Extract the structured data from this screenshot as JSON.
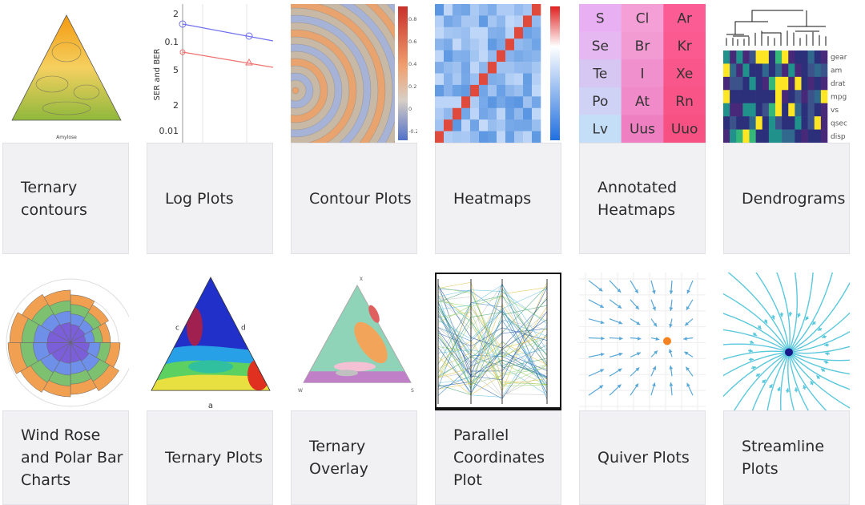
{
  "cards": [
    {
      "label": "Ternary contours",
      "thumb_text": [
        "Amylose"
      ]
    },
    {
      "label": "Log Plots",
      "thumb_text": [
        "SER and BER",
        "2",
        "0.1",
        "5",
        "2",
        "0.01"
      ]
    },
    {
      "label": "Contour Plots",
      "thumb_text": [
        "0.8",
        "0.6",
        "0.4",
        "0.2",
        "0",
        "-0.2"
      ]
    },
    {
      "label": "Heatmaps",
      "thumb_text": []
    },
    {
      "label": "Annotated Heatmaps",
      "thumb_text": [
        "S",
        "Se",
        "Te",
        "Po",
        "Lv",
        "Cl",
        "Br",
        "I",
        "At",
        "Uus",
        "Ar",
        "Kr",
        "Xe",
        "Rn",
        "Uuo"
      ]
    },
    {
      "label": "Dendrograms",
      "thumb_text": [
        "gear",
        "am",
        "drat",
        "mpg",
        "vs",
        "qsec",
        "disp"
      ]
    },
    {
      "label": "Wind Rose and Polar Bar Charts",
      "thumb_text": []
    },
    {
      "label": "Ternary Plots",
      "thumb_text": [
        "a",
        "c",
        "d"
      ]
    },
    {
      "label": "Ternary Overlay",
      "thumb_text": [
        "X",
        "W",
        "S"
      ]
    },
    {
      "label": "Parallel Coordinates Plot",
      "thumb_text": []
    },
    {
      "label": "Quiver Plots",
      "thumb_text": []
    },
    {
      "label": "Streamline Plots",
      "thumb_text": []
    }
  ]
}
